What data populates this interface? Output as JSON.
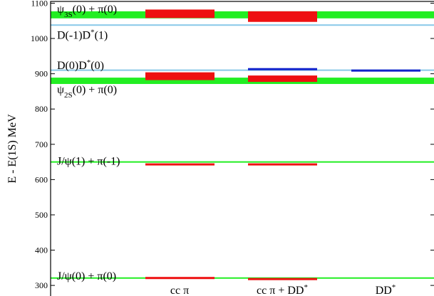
{
  "chart_data": {
    "type": "energy-level",
    "ylabel": "E - E(1S) MeV",
    "ylim": [
      270,
      1105
    ],
    "yticks": [
      300,
      400,
      500,
      600,
      700,
      800,
      900,
      1000,
      1100
    ],
    "categories": [
      {
        "id": "cc_pi",
        "main": "cc π",
        "sup": ""
      },
      {
        "id": "cc_pi_dd",
        "main": "cc π + DD",
        "sup": "*"
      },
      {
        "id": "dd",
        "main": "DD",
        "sup": "*"
      }
    ],
    "thresholds": [
      {
        "name": "psi3s-pi",
        "energy": 1067,
        "width": 20,
        "color": "#22ee22",
        "label": [
          {
            "t": "ψ"
          },
          {
            "t": "3S",
            "sub": true
          },
          {
            "t": "(0) + π(0)"
          }
        ],
        "label_energy": 1083
      },
      {
        "name": "d-m1-dstar-1",
        "energy": 1038,
        "width": 0,
        "color": "#88c8e8",
        "label": [
          {
            "t": "D(-1)D"
          },
          {
            "t": "*",
            "sup": true
          },
          {
            "t": "(1)"
          }
        ],
        "label_energy": 1009
      },
      {
        "name": "d0-dstar0",
        "energy": 910,
        "width": 0,
        "color": "#88c8e8",
        "label": [
          {
            "t": "D(0)D"
          },
          {
            "t": "*",
            "sup": true
          },
          {
            "t": "(0)"
          }
        ],
        "label_energy": 923
      },
      {
        "name": "psi2s-pi",
        "energy": 880,
        "width": 18,
        "color": "#22ee22",
        "label": [
          {
            "t": "ψ"
          },
          {
            "t": "2S",
            "sub": true
          },
          {
            "t": "(0) + π(0)"
          }
        ],
        "label_energy": 855
      },
      {
        "name": "jpsi1-pi-m1",
        "energy": 650,
        "width": 0,
        "color": "#22ee22",
        "label": [
          {
            "t": "J/ψ(1) + π(-1)"
          }
        ],
        "label_energy": 652
      },
      {
        "name": "jpsi0-pi0",
        "energy": 321,
        "width": 0,
        "color": "#22ee22",
        "label": [
          {
            "t": "J/ψ(0) + π(0)"
          }
        ],
        "label_energy": 326
      }
    ],
    "levels": [
      {
        "category": "cc_pi",
        "energy": 1070,
        "error": 12,
        "color": "#ee1111"
      },
      {
        "category": "cc_pi",
        "energy": 893,
        "error": 11,
        "color": "#ee1111"
      },
      {
        "category": "cc_pi",
        "energy": 643,
        "error": 3,
        "color": "#ee1111"
      },
      {
        "category": "cc_pi",
        "energy": 321,
        "error": 1,
        "color": "#ee1111"
      },
      {
        "category": "cc_pi_dd",
        "energy": 1062,
        "error": 15,
        "color": "#ee1111"
      },
      {
        "category": "cc_pi_dd",
        "energy": 913,
        "error": 3,
        "color": "#1122cc"
      },
      {
        "category": "cc_pi_dd",
        "energy": 886,
        "error": 9,
        "color": "#ee1111"
      },
      {
        "category": "cc_pi_dd",
        "energy": 643,
        "error": 3,
        "color": "#ee1111"
      },
      {
        "category": "cc_pi_dd",
        "energy": 318,
        "error": 3,
        "color": "#ee1111"
      },
      {
        "category": "dd",
        "energy": 909,
        "error": 3,
        "color": "#1122cc"
      }
    ]
  }
}
